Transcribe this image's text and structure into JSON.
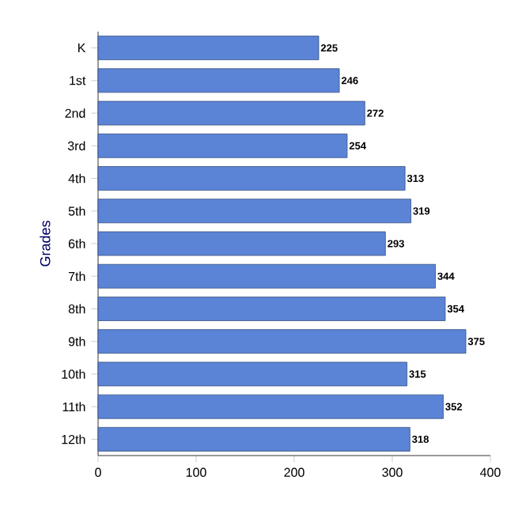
{
  "chart_data": {
    "type": "bar",
    "orientation": "horizontal",
    "ylabel": "Grades",
    "categories": [
      "K",
      "1st",
      "2nd",
      "3rd",
      "4th",
      "5th",
      "6th",
      "7th",
      "8th",
      "9th",
      "10th",
      "11th",
      "12th"
    ],
    "values": [
      225,
      246,
      272,
      254,
      313,
      319,
      293,
      344,
      354,
      375,
      315,
      352,
      318
    ],
    "color": "#5b84d6",
    "data_labels": true,
    "grid": false,
    "xlim": [
      0,
      400
    ],
    "xticks": [
      0,
      100,
      200,
      300,
      400
    ]
  }
}
